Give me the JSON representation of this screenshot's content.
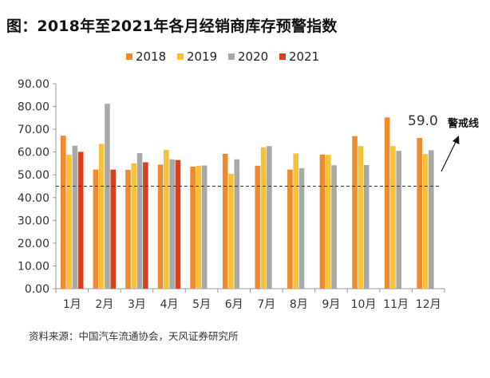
{
  "title": "图：2018年至2021年各月经销商库存预警指数",
  "source": "资料来源：中国汽车流通协会，天风证券研究所",
  "chart_data": {
    "type": "bar",
    "title": "图：2018年至2021年各月经销商库存预警指数",
    "xlabel": "",
    "ylabel": "",
    "ylim": [
      0,
      90
    ],
    "yticks": [
      "0.00",
      "10.00",
      "20.00",
      "30.00",
      "40.00",
      "50.00",
      "60.00",
      "70.00",
      "80.00",
      "90.00"
    ],
    "categories": [
      "1月",
      "2月",
      "3月",
      "4月",
      "5月",
      "6月",
      "7月",
      "8月",
      "9月",
      "10月",
      "11月",
      "12月"
    ],
    "series": [
      {
        "name": "2018",
        "color": "#F08A2A",
        "values": [
          67.2,
          52.3,
          52.2,
          54.5,
          53.6,
          59.2,
          54.0,
          52.3,
          58.9,
          67.0,
          75.2,
          66.2
        ]
      },
      {
        "name": "2019",
        "color": "#F8C13A",
        "values": [
          58.8,
          63.6,
          55.0,
          61.0,
          54.0,
          50.4,
          62.1,
          59.4,
          58.8,
          62.6,
          62.6,
          59.1
        ]
      },
      {
        "name": "2020",
        "color": "#A8A8A8",
        "values": [
          62.8,
          81.2,
          59.5,
          56.8,
          54.1,
          56.8,
          62.6,
          52.9,
          54.2,
          54.3,
          60.5,
          60.8
        ]
      },
      {
        "name": "2021",
        "color": "#D9411E",
        "values": [
          60.1,
          52.3,
          55.5,
          56.5,
          null,
          null,
          null,
          null,
          null,
          null,
          null,
          null
        ]
      }
    ],
    "reference_line": {
      "value": 45,
      "label": "警戒线",
      "style": "dashed"
    },
    "annotation": {
      "text": "59.0"
    },
    "legend": "top-center",
    "grid": false
  }
}
